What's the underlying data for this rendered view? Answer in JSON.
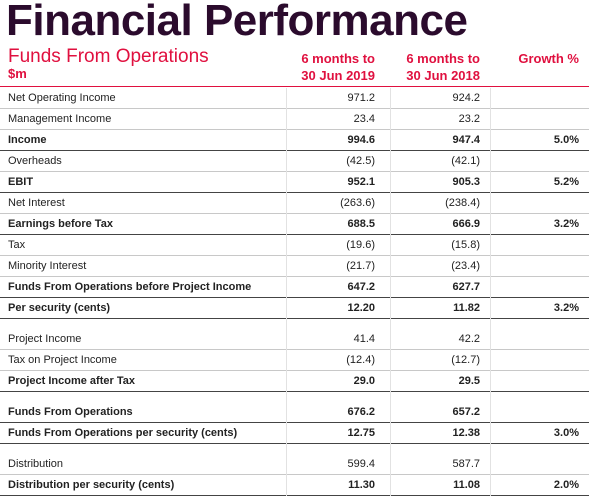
{
  "header": {
    "title": "Financial Performance",
    "subtitle": "Funds From Operations",
    "unit": "$m",
    "columns": [
      {
        "lines": [
          "6 months to",
          "30 Jun 2019"
        ]
      },
      {
        "lines": [
          "6 months to",
          "30 Jun 2018"
        ]
      },
      {
        "lines": [
          "Growth %"
        ]
      }
    ]
  },
  "groups": [
    {
      "rows": [
        {
          "label": "Net Operating Income",
          "v2019": "971.2",
          "v2018": "924.2",
          "growth": null,
          "bold": false
        },
        {
          "label": "Management Income",
          "v2019": "23.4",
          "v2018": "23.2",
          "growth": null,
          "bold": false
        },
        {
          "label": "Income",
          "v2019": "994.6",
          "v2018": "947.4",
          "growth": "5.0%",
          "bold": true
        },
        {
          "label": "Overheads",
          "v2019": "(42.5)",
          "v2018": "(42.1)",
          "growth": null,
          "bold": false
        },
        {
          "label": "EBIT",
          "v2019": "952.1",
          "v2018": "905.3",
          "growth": "5.2%",
          "bold": true
        },
        {
          "label": "Net Interest",
          "v2019": "(263.6)",
          "v2018": "(238.4)",
          "growth": null,
          "bold": false
        },
        {
          "label": "Earnings before Tax",
          "v2019": "688.5",
          "v2018": "666.9",
          "growth": "3.2%",
          "bold": true
        },
        {
          "label": "Tax",
          "v2019": "(19.6)",
          "v2018": "(15.8)",
          "growth": null,
          "bold": false
        },
        {
          "label": "Minority Interest",
          "v2019": "(21.7)",
          "v2018": "(23.4)",
          "growth": null,
          "bold": false
        },
        {
          "label": "Funds From Operations before Project Income",
          "v2019": "647.2",
          "v2018": "627.7",
          "growth": null,
          "bold": true
        },
        {
          "label": "Per security (cents)",
          "v2019": "12.20",
          "v2018": "11.82",
          "growth": "3.2%",
          "bold": true
        }
      ]
    },
    {
      "rows": [
        {
          "label": "Project Income",
          "v2019": "41.4",
          "v2018": "42.2",
          "growth": null,
          "bold": false
        },
        {
          "label": "Tax on Project Income",
          "v2019": "(12.4)",
          "v2018": "(12.7)",
          "growth": null,
          "bold": false
        },
        {
          "label": "Project Income after Tax",
          "v2019": "29.0",
          "v2018": "29.5",
          "growth": null,
          "bold": true
        }
      ]
    },
    {
      "rows": [
        {
          "label": "Funds From Operations",
          "v2019": "676.2",
          "v2018": "657.2",
          "growth": null,
          "bold": true
        },
        {
          "label": "Funds From Operations per security (cents)",
          "v2019": "12.75",
          "v2018": "12.38",
          "growth": "3.0%",
          "bold": true
        }
      ]
    },
    {
      "rows": [
        {
          "label": "Distribution",
          "v2019": "599.4",
          "v2018": "587.7",
          "growth": null,
          "bold": false
        },
        {
          "label": "Distribution per security (cents)",
          "v2019": "11.30",
          "v2018": "11.08",
          "growth": "2.0%",
          "bold": true
        }
      ]
    }
  ]
}
